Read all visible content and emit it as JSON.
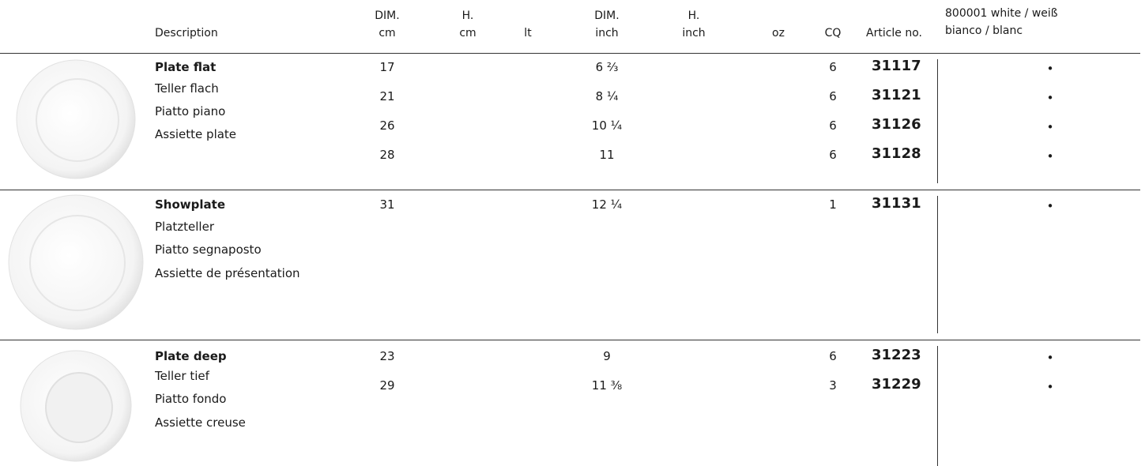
{
  "table": {
    "headers": [
      [
        "Description"
      ],
      [
        "DIM.",
        "cm"
      ],
      [
        "H.",
        "cm"
      ],
      [
        "lt"
      ],
      [
        "DIM.",
        "inch"
      ],
      [
        "H.",
        "inch"
      ],
      [
        "oz"
      ],
      [
        "CQ"
      ],
      [
        "Article no."
      ],
      [
        "800001 white / weiß",
        "bianco / blanc"
      ]
    ],
    "groups": [
      {
        "names": [
          "Plate flat",
          "Teller flach",
          "Piatto piano",
          "Assiette plate"
        ],
        "rows": [
          {
            "dim_cm": 17,
            "dim_inch": "6 ⅔",
            "cq": 6,
            "article": "31117",
            "mark": "•"
          },
          {
            "dim_cm": 21,
            "dim_inch": "8 ¼",
            "cq": 6,
            "article": "31121",
            "mark": "•"
          },
          {
            "dim_cm": 26,
            "dim_inch": "10 ¼",
            "cq": 6,
            "article": "31126",
            "mark": "•"
          },
          {
            "dim_cm": 28,
            "dim_inch": "11",
            "cq": 6,
            "article": "31128",
            "mark": "•"
          }
        ]
      },
      {
        "names": [
          "Showplate",
          "Platzteller",
          "Piatto segnaposto",
          "Assiette de présentation"
        ],
        "rows": [
          {
            "dim_cm": 31,
            "dim_inch": "12 ¼",
            "cq": 1,
            "article": "31131",
            "mark": "•"
          }
        ]
      },
      {
        "names": [
          "Plate deep",
          "Teller tief",
          "Piatto fondo",
          "Assiette creuse"
        ],
        "rows": [
          {
            "dim_cm": 23,
            "dim_inch": "9",
            "cq": 6,
            "article": "31223",
            "mark": "•"
          },
          {
            "dim_cm": 29,
            "dim_inch": "11 ⅜",
            "cq": 3,
            "article": "31229",
            "mark": "•"
          }
        ]
      }
    ]
  }
}
